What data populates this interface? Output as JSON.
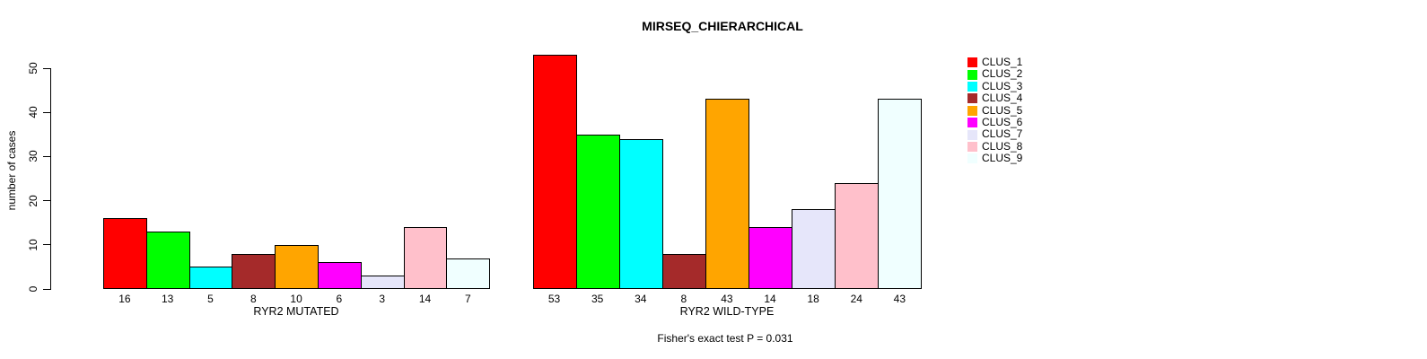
{
  "chart_data": {
    "type": "bar",
    "title": "MIRSEQ_CHIERARCHICAL",
    "ylabel": "number of cases",
    "xlabel": "",
    "ylim": [
      0,
      50
    ],
    "yticks": [
      0,
      10,
      20,
      30,
      40,
      50
    ],
    "grid": false,
    "legend_position": "right",
    "categories": [
      "CLUS_1",
      "CLUS_2",
      "CLUS_3",
      "CLUS_4",
      "CLUS_5",
      "CLUS_6",
      "CLUS_7",
      "CLUS_8",
      "CLUS_9"
    ],
    "colors": [
      "#FF0000",
      "#00FF00",
      "#00FFFF",
      "#A52A2A",
      "#FFA500",
      "#FF00FF",
      "#E6E6FA",
      "#FFC0CB",
      "#F0FFFF"
    ],
    "bar_border_color": "#000000",
    "series": [
      {
        "name": "RYR2 MUTATED",
        "values": [
          16,
          13,
          5,
          8,
          10,
          6,
          3,
          14,
          7
        ]
      },
      {
        "name": "RYR2 WILD-TYPE",
        "values": [
          53,
          35,
          34,
          8,
          43,
          14,
          18,
          24,
          43
        ]
      }
    ],
    "annotation": "Fisher's exact test P = 0.031"
  }
}
